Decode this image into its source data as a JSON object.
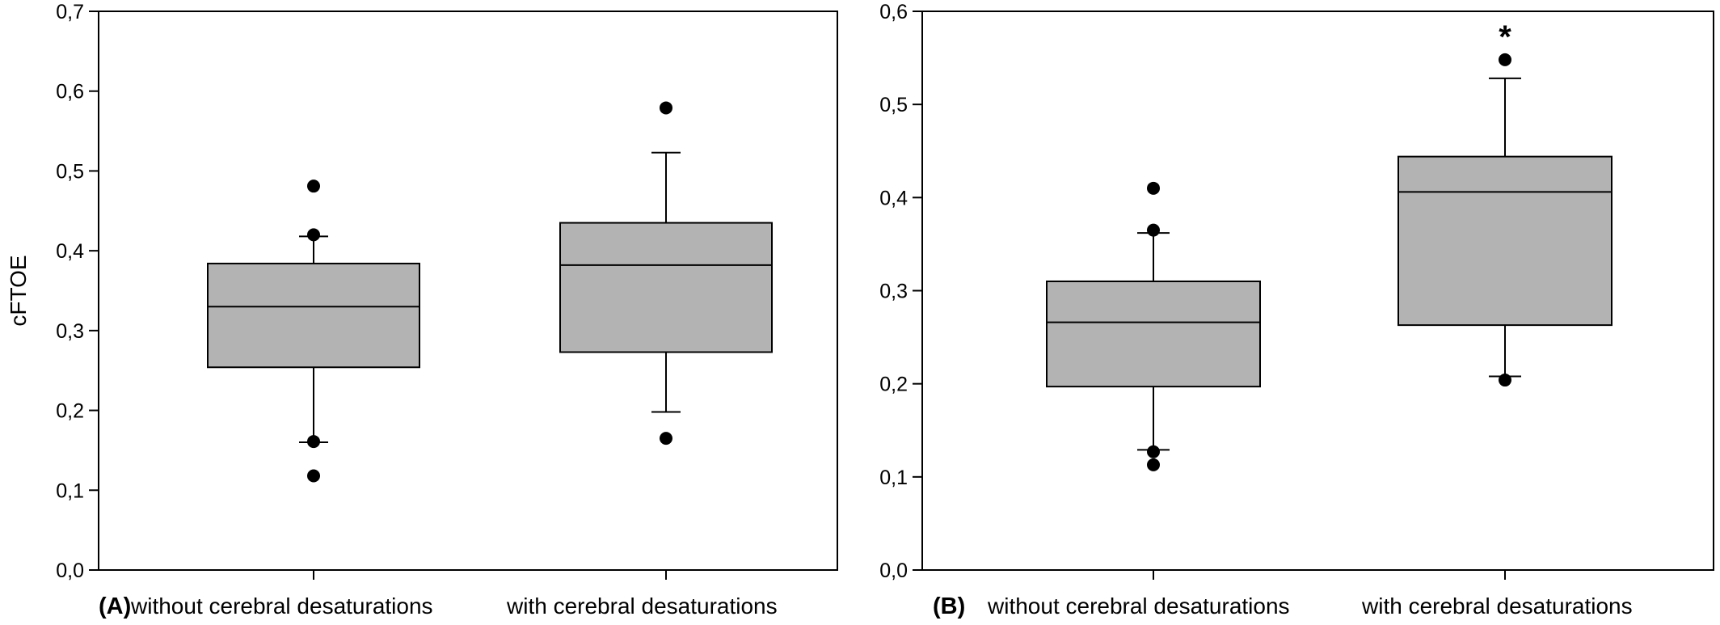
{
  "chart_data": [
    {
      "type": "box",
      "panel_label": "(A)",
      "ylabel": "cFTOE",
      "ylim": [
        0.0,
        0.7
      ],
      "yticks": [
        "0,0",
        "0,1",
        "0,2",
        "0,3",
        "0,4",
        "0,5",
        "0,6",
        "0,7"
      ],
      "grid": false,
      "categories": [
        "without cerebral desaturations",
        "with cerebral desaturations"
      ],
      "boxes": [
        {
          "category": "without cerebral desaturations",
          "whisker_low": 0.16,
          "q1": 0.254,
          "median": 0.33,
          "q3": 0.384,
          "whisker_high": 0.418,
          "outliers": [
            0.118,
            0.161,
            0.42,
            0.481
          ]
        },
        {
          "category": "with cerebral desaturations",
          "whisker_low": 0.198,
          "q1": 0.273,
          "median": 0.382,
          "q3": 0.435,
          "whisker_high": 0.523,
          "outliers": [
            0.165,
            0.579
          ]
        }
      ],
      "annotations": []
    },
    {
      "type": "box",
      "panel_label": "(B)",
      "ylabel": "",
      "ylim": [
        0.0,
        0.6
      ],
      "yticks": [
        "0,0",
        "0,1",
        "0,2",
        "0,3",
        "0,4",
        "0,5",
        "0,6"
      ],
      "grid": false,
      "categories": [
        "without cerebral desaturations",
        "with cerebral desaturations"
      ],
      "boxes": [
        {
          "category": "without cerebral desaturations",
          "whisker_low": 0.129,
          "q1": 0.197,
          "median": 0.266,
          "q3": 0.31,
          "whisker_high": 0.362,
          "outliers": [
            0.113,
            0.127,
            0.365,
            0.41
          ]
        },
        {
          "category": "with cerebral desaturations",
          "whisker_low": 0.208,
          "q1": 0.263,
          "median": 0.406,
          "q3": 0.444,
          "whisker_high": 0.528,
          "outliers": [
            0.204,
            0.548
          ]
        }
      ],
      "annotations": [
        {
          "text": "*",
          "category": "with cerebral desaturations",
          "y": 0.58
        }
      ]
    }
  ],
  "colors": {
    "box_fill": "#b3b3b3",
    "line": "#000000",
    "outlier": "#000000"
  }
}
